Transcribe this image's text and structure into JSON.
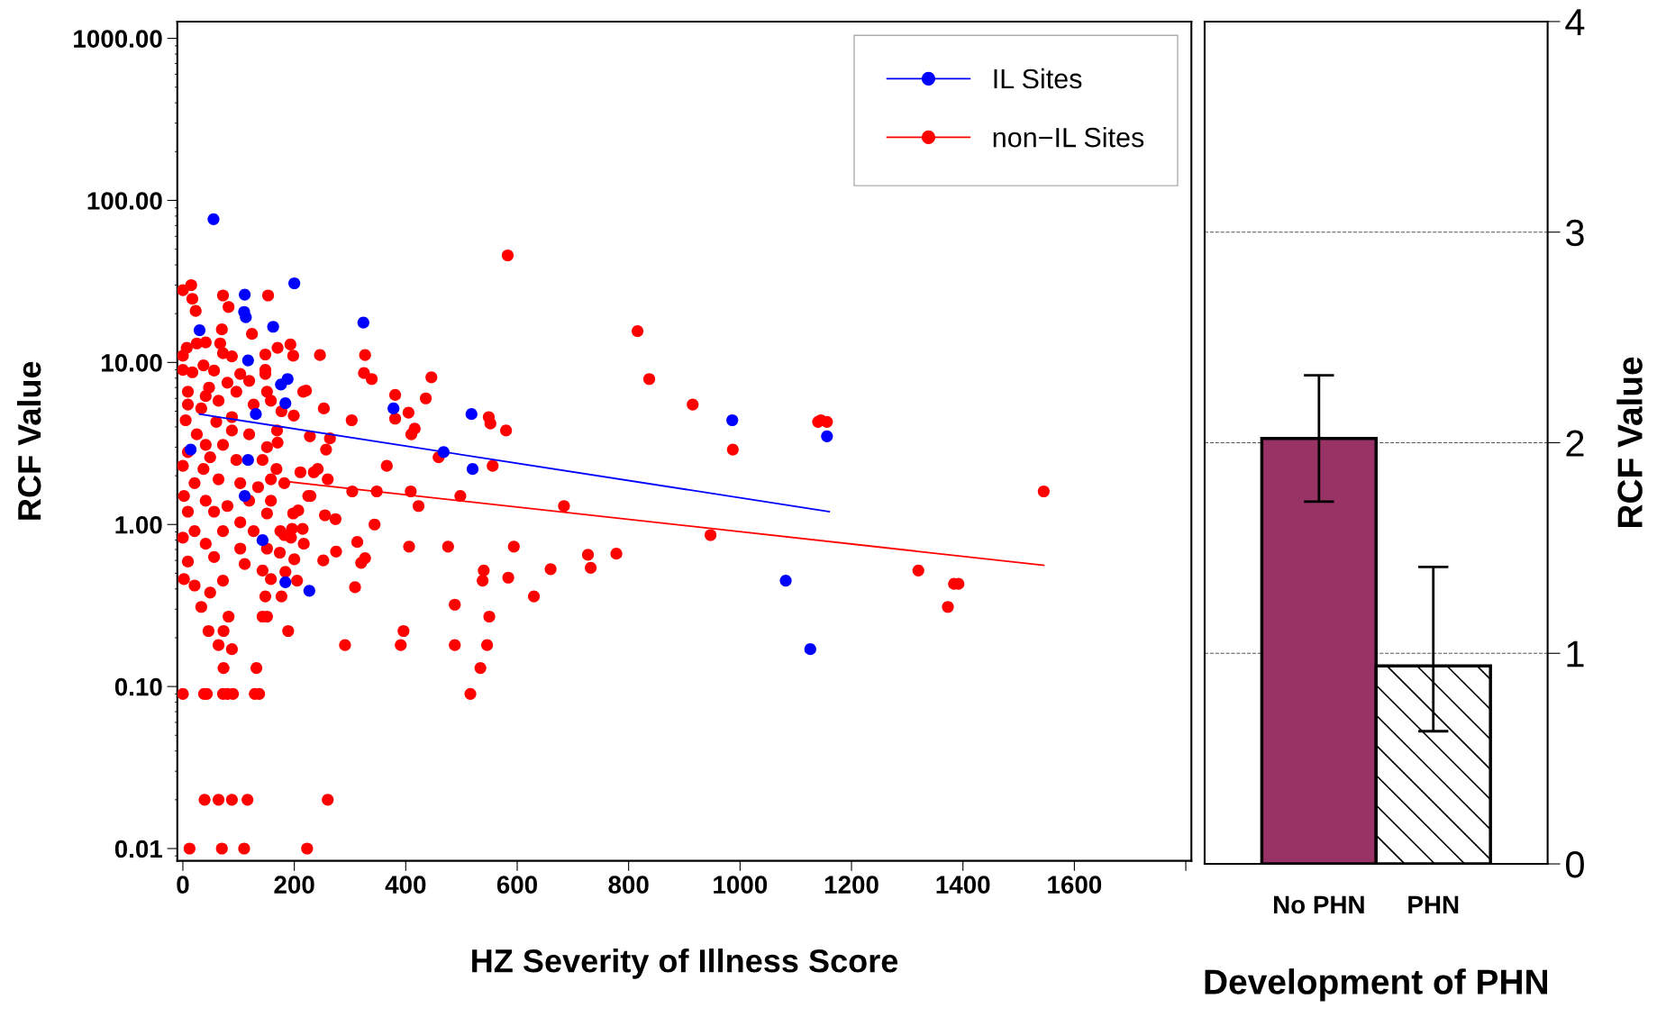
{
  "chart_data": [
    {
      "type": "scatter",
      "xlabel": "HZ Severity of Illness Score",
      "ylabel": "RCF Value",
      "log": "y",
      "grid": false,
      "legend": "top right",
      "marker": "circle",
      "xlim": [
        -10,
        1810
      ],
      "xticks": [
        0,
        200,
        400,
        600,
        800,
        1000,
        1200,
        1400,
        1600,
        {
          "value": 1800,
          "label": null
        }
      ],
      "ylim": [
        0.0084,
        1270
      ],
      "yticks": [
        {
          "value": 0.01,
          "label": "0.01"
        },
        {
          "value": 0.1,
          "label": "0.10"
        },
        {
          "value": 1,
          "label": "1.00"
        },
        {
          "value": 10,
          "label": "10.00"
        },
        {
          "value": 100,
          "label": "100.00"
        },
        {
          "value": 1000,
          "label": "1000.00"
        }
      ],
      "series": [
        {
          "name": "non−IL Sites",
          "color": "#ff0000",
          "x": [
            0,
            15,
            17,
            23,
            72,
            82,
            153,
            583,
            70,
            124,
            67,
            72,
            148,
            170,
            193,
            198,
            246,
            327,
            325,
            339,
            446,
            436,
            381,
            405,
            381,
            549,
            552,
            580,
            416,
            410,
            303,
            253,
            216,
            221,
            148,
            148,
            151,
            177,
            199,
            169,
            170,
            228,
            264,
            257,
            366,
            459,
            556,
            211,
            235,
            242,
            260,
            304,
            348,
            409,
            423,
            498,
            225,
            229,
            255,
            274,
            344,
            198,
            207,
            196,
            215,
            217,
            175,
            194,
            252,
            275,
            320,
            327,
            313,
            406,
            476,
            594,
            309,
            200,
            184,
            205,
            540,
            538,
            584,
            630,
            488,
            550,
            396,
            391,
            291,
            488,
            546,
            534,
            516,
            189,
            148,
            177,
            143,
            151,
            132,
            73,
            88,
            64,
            73,
            46,
            82,
            0,
            38,
            43,
            72,
            80,
            90,
            129,
            137,
            39,
            64,
            88,
            116,
            260,
            12,
            70,
            110,
            223,
            0,
            7,
            25,
            41,
            0,
            17,
            37,
            56,
            88,
            103,
            119,
            80,
            47,
            9,
            64,
            33,
            5,
            60,
            88,
            119,
            25,
            72,
            9,
            49,
            96,
            143,
            0,
            37,
            64,
            21,
            103,
            135,
            2,
            41,
            80,
            119,
            158,
            9,
            56,
            103,
            151,
            21,
            72,
            127,
            0,
            41,
            103,
            151,
            174,
            9,
            56,
            111,
            143,
            2,
            21,
            49,
            33,
            72,
            158,
            182,
            9,
            41,
            96,
            127,
            158,
            41,
            88,
            151,
            168,
            182,
            158,
            816,
            837,
            915,
            987,
            947,
            1320,
            1145,
            1140,
            1373,
            1384,
            1392,
            1156,
            1545,
            727,
            732,
            778,
            684,
            660
          ],
          "values": [
            27.9,
            30,
            24.7,
            20.8,
            25.9,
            22,
            25.9,
            45.8,
            16,
            15,
            13.1,
            11.4,
            11.2,
            12.3,
            12.9,
            11,
            11.1,
            11.1,
            8.6,
            7.9,
            8.1,
            6.0,
            6.3,
            4.9,
            4.5,
            4.6,
            4.2,
            3.8,
            3.9,
            3.6,
            4.4,
            5.2,
            6.6,
            6.7,
            9.0,
            8.5,
            6.6,
            5.0,
            4.7,
            3.8,
            3.2,
            3.5,
            3.4,
            2.9,
            2.3,
            2.6,
            2.3,
            2.1,
            2.1,
            2.2,
            1.9,
            1.6,
            1.6,
            1.6,
            1.3,
            1.5,
            1.5,
            1.5,
            1.14,
            1.08,
            1.0,
            1.17,
            1.22,
            0.94,
            0.94,
            0.76,
            0.91,
            0.83,
            0.6,
            0.68,
            0.58,
            0.62,
            0.78,
            0.73,
            0.73,
            0.73,
            0.41,
            0.61,
            0.51,
            0.45,
            0.52,
            0.45,
            0.47,
            0.36,
            0.32,
            0.27,
            0.22,
            0.18,
            0.18,
            0.18,
            0.18,
            0.13,
            0.09,
            0.22,
            0.36,
            0.36,
            0.27,
            0.27,
            0.13,
            0.13,
            0.17,
            0.18,
            0.22,
            0.22,
            0.27,
            0.09,
            0.09,
            0.09,
            0.09,
            0.09,
            0.09,
            0.09,
            0.09,
            0.02,
            0.02,
            0.02,
            0.02,
            0.02,
            0.01,
            0.01,
            0.01,
            0.01,
            11,
            12.3,
            13.1,
            13.3,
            9,
            8.7,
            9.6,
            8.9,
            10.9,
            8.5,
            7.7,
            7.5,
            7.0,
            6.6,
            5.8,
            5.2,
            4.4,
            4.3,
            4.6,
            3.6,
            3.6,
            3.1,
            2.8,
            2.6,
            2.5,
            2.5,
            2.3,
            2.2,
            1.9,
            1.8,
            1.8,
            1.7,
            1.5,
            1.4,
            1.3,
            1.4,
            1.4,
            1.2,
            1.2,
            1.03,
            1.17,
            0.91,
            0.91,
            0.91,
            0.83,
            0.76,
            0.71,
            0.71,
            0.67,
            0.59,
            0.63,
            0.57,
            0.52,
            0.46,
            0.42,
            0.38,
            0.31,
            0.45,
            0.46,
            0.86,
            5.5,
            6.2,
            6.6,
            5.5,
            5.8,
            3.1,
            3.8,
            3.0,
            2.2,
            1.8,
            1.9,
            15.6,
            7.9,
            5.5,
            2.9,
            0.86,
            0.52,
            4.4,
            4.3,
            0.31,
            0.43,
            0.43,
            4.3,
            1.6,
            0.65,
            0.54,
            0.66,
            1.3,
            0.53
          ]
        },
        {
          "name": "IL Sites",
          "color": "#0000ff",
          "x": [
            55,
            200,
            111,
            110,
            113,
            30,
            162,
            324,
            117,
            188,
            176,
            184,
            378,
            518,
            131,
            468,
            520,
            117,
            111,
            143,
            184,
            227,
            14,
            986,
            1156,
            1082,
            1126
          ],
          "values": [
            76.6,
            30.8,
            26.2,
            20.5,
            19,
            15.8,
            16.6,
            17.6,
            10.3,
            7.9,
            7.3,
            5.6,
            5.2,
            4.8,
            4.8,
            2.8,
            2.2,
            2.5,
            1.5,
            0.8,
            0.44,
            0.39,
            2.9,
            4.4,
            3.5,
            0.45,
            0.17
          ]
        },
        {
          "type": "line",
          "marker": "none",
          "color": "#0000ff",
          "x": [
            30,
            1160
          ],
          "values": [
            4.8,
            1.2
          ]
        },
        {
          "type": "line",
          "marker": "none",
          "color": "#ff0000",
          "x": [
            180,
            1545
          ],
          "values": [
            1.85,
            0.56
          ]
        }
      ]
    },
    {
      "type": "bar",
      "xlabel": "Development of PHN",
      "y2label": "RCF Value",
      "categories": [
        "No PHN",
        "PHN"
      ],
      "values": [
        2.02,
        0.94
      ],
      "colors": [
        "#993366",
        "#ffffff"
      ],
      "errors": [
        [
          1.72,
          2.32
        ],
        [
          0.63,
          1.41
        ]
      ],
      "ylim": [
        0,
        4
      ],
      "yticks": [
        0,
        1,
        2,
        3,
        4
      ],
      "grid": "y"
    }
  ]
}
